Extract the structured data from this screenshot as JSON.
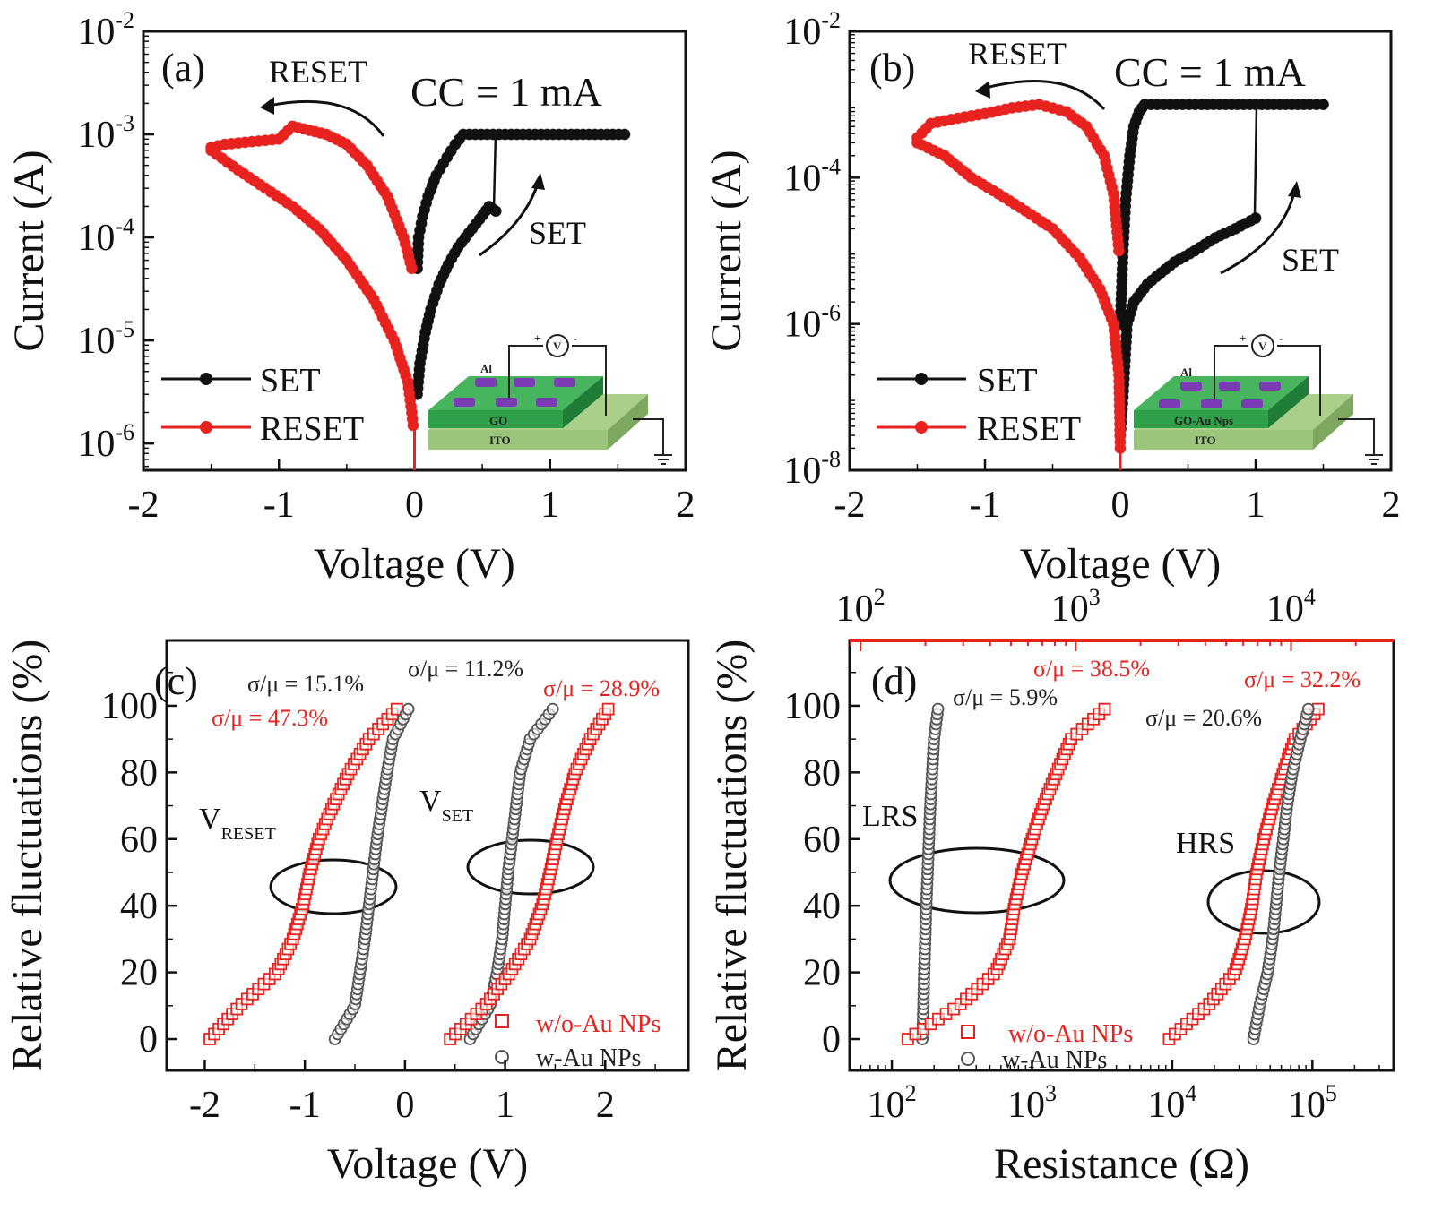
{
  "chart_data": [
    {
      "panel": "(a)",
      "type": "scatter",
      "xlabel": "Voltage (V)",
      "ylabel": "Current (A)",
      "xscale": "linear",
      "yscale": "log",
      "xlim": [
        -2,
        2
      ],
      "ylim": [
        5.5e-07,
        0.01
      ],
      "xticks": [
        -2,
        -1,
        0,
        1,
        2
      ],
      "xtick_labels": [
        "-2",
        "-1",
        "0",
        "1",
        "2"
      ],
      "yticks": [
        1e-06,
        1e-05,
        0.0001,
        0.001,
        0.01
      ],
      "ytick_labels": [
        "10^-6",
        "10^-5",
        "10^-4",
        "10^-3",
        "10^-2"
      ],
      "annotations": {
        "cc": "CC = 1 mA",
        "reset_arrow": "RESET",
        "set_arrow": "SET"
      },
      "inset": {
        "top_electrode": "Al",
        "layer": "GO",
        "bottom_electrode": "ITO",
        "plus": "+",
        "meter": "V",
        "minus": "-"
      },
      "legend": [
        "SET",
        "RESET"
      ],
      "series": [
        {
          "name": "SET",
          "color": "#111111",
          "points": [
            [
              0.02,
              3e-06
            ],
            [
              0.04,
              6e-06
            ],
            [
              0.08,
              1.2e-05
            ],
            [
              0.12,
              2e-05
            ],
            [
              0.18,
              3.5e-05
            ],
            [
              0.25,
              5.5e-05
            ],
            [
              0.32,
              8e-05
            ],
            [
              0.4,
              0.00011
            ],
            [
              0.48,
              0.00015
            ],
            [
              0.55,
              0.0002
            ],
            [
              0.6,
              0.00018
            ]
          ]
        },
        {
          "name": "SET",
          "color": "#111111",
          "points": [
            [
              0.02,
              5e-05
            ],
            [
              0.03,
              0.0001
            ],
            [
              0.06,
              0.00016
            ],
            [
              0.1,
              0.00025
            ],
            [
              0.16,
              0.0004
            ],
            [
              0.24,
              0.0006
            ],
            [
              0.3,
              0.0008
            ],
            [
              0.36,
              0.001
            ],
            [
              0.8,
              0.001
            ],
            [
              1.2,
              0.001
            ],
            [
              1.55,
              0.001
            ]
          ]
        },
        {
          "name": "RESET",
          "color": "#e8231f",
          "points": [
            [
              -0.02,
              5e-05
            ],
            [
              -0.08,
              0.0001
            ],
            [
              -0.2,
              0.00025
            ],
            [
              -0.35,
              0.0005
            ],
            [
              -0.5,
              0.0008
            ],
            [
              -0.65,
              0.001
            ],
            [
              -0.9,
              0.0012
            ],
            [
              -1.0,
              0.0009
            ],
            [
              -1.2,
              0.00085
            ],
            [
              -1.4,
              0.0008
            ],
            [
              -1.5,
              0.00075
            ]
          ]
        },
        {
          "name": "RESET",
          "color": "#e8231f",
          "points": [
            [
              -1.5,
              0.0007
            ],
            [
              -1.3,
              0.00045
            ],
            [
              -1.1,
              0.0003
            ],
            [
              -0.9,
              0.0002
            ],
            [
              -0.7,
              0.00012
            ],
            [
              -0.5,
              6e-05
            ],
            [
              -0.3,
              2.5e-05
            ],
            [
              -0.15,
              1e-05
            ],
            [
              -0.05,
              4e-06
            ],
            [
              -0.02,
              2e-06
            ],
            [
              -0.01,
              1.5e-06
            ]
          ]
        }
      ]
    },
    {
      "panel": "(b)",
      "type": "scatter",
      "xlabel": "Voltage (V)",
      "ylabel": "Current (A)",
      "xscale": "linear",
      "yscale": "log",
      "xlim": [
        -2,
        2
      ],
      "ylim": [
        1e-08,
        0.01
      ],
      "xticks": [
        -2,
        -1,
        0,
        1,
        2
      ],
      "xtick_labels": [
        "-2",
        "-1",
        "0",
        "1",
        "2"
      ],
      "yticks": [
        1e-08,
        1e-06,
        0.0001,
        0.01
      ],
      "ytick_labels": [
        "10^-8",
        "10^-6",
        "10^-4",
        "10^-2"
      ],
      "annotations": {
        "cc": "CC = 1 mA",
        "reset_arrow": "RESET",
        "set_arrow": "SET"
      },
      "inset": {
        "top_electrode": "Al",
        "layer": "GO-Au Nps",
        "bottom_electrode": "ITO",
        "plus": "+",
        "meter": "V",
        "minus": "-"
      },
      "legend": [
        "SET",
        "RESET"
      ],
      "series": [
        {
          "name": "SET",
          "color": "#111111",
          "points": [
            [
              0.0,
              3e-08
            ],
            [
              0.02,
              1e-07
            ],
            [
              0.05,
              1e-06
            ],
            [
              0.1,
              2e-06
            ],
            [
              0.2,
              3.5e-06
            ],
            [
              0.3,
              5e-06
            ],
            [
              0.4,
              7e-06
            ],
            [
              0.55,
              1e-05
            ],
            [
              0.7,
              1.5e-05
            ],
            [
              0.85,
              2e-05
            ],
            [
              1.0,
              2.8e-05
            ]
          ]
        },
        {
          "name": "SET",
          "color": "#111111",
          "points": [
            [
              0.0,
              1e-06
            ],
            [
              0.02,
              1e-05
            ],
            [
              0.04,
              5e-05
            ],
            [
              0.07,
              0.0002
            ],
            [
              0.1,
              0.0005
            ],
            [
              0.14,
              0.0008
            ],
            [
              0.18,
              0.001
            ],
            [
              0.6,
              0.001
            ],
            [
              1.0,
              0.001
            ],
            [
              1.4,
              0.001
            ],
            [
              1.5,
              0.001
            ]
          ]
        },
        {
          "name": "RESET",
          "color": "#e8231f",
          "points": [
            [
              -0.01,
              1e-05
            ],
            [
              -0.05,
              6e-05
            ],
            [
              -0.12,
              0.0002
            ],
            [
              -0.25,
              0.0005
            ],
            [
              -0.4,
              0.0008
            ],
            [
              -0.6,
              0.001
            ],
            [
              -0.8,
              0.0009
            ],
            [
              -1.0,
              0.00075
            ],
            [
              -1.2,
              0.00065
            ],
            [
              -1.4,
              0.00055
            ],
            [
              -1.5,
              0.00035
            ]
          ]
        },
        {
          "name": "RESET",
          "color": "#e8231f",
          "points": [
            [
              -1.5,
              0.0003
            ],
            [
              -1.3,
              0.0002
            ],
            [
              -1.1,
              0.0001
            ],
            [
              -0.9,
              6e-05
            ],
            [
              -0.7,
              3.5e-05
            ],
            [
              -0.5,
              2e-05
            ],
            [
              -0.3,
              8e-06
            ],
            [
              -0.15,
              3e-06
            ],
            [
              -0.05,
              1e-06
            ],
            [
              -0.01,
              2e-07
            ],
            [
              0.0,
              2e-08
            ]
          ]
        }
      ]
    },
    {
      "panel": "(c)",
      "type": "scatter",
      "xlabel": "Voltage (V)",
      "ylabel": "Relative fluctuations (%)",
      "xscale": "linear",
      "yscale": "linear",
      "xlim": [
        -2.38,
        2.83
      ],
      "ylim": [
        -9.4,
        119.6
      ],
      "xticks": [
        -2,
        -1,
        0,
        1,
        2
      ],
      "xtick_labels": [
        "-2",
        "-1",
        "0",
        "1",
        "2"
      ],
      "yticks": [
        0,
        20,
        40,
        60,
        80,
        100
      ],
      "ytick_labels": [
        "0",
        "20",
        "40",
        "60",
        "80",
        "100"
      ],
      "percentiles": [
        0,
        10,
        20,
        30,
        40,
        50,
        60,
        70,
        80,
        90,
        100
      ],
      "annotations": {
        "v_reset_main": "V",
        "v_reset_sub": "RESET",
        "v_set_main": "V",
        "v_set_sub": "SET",
        "cv_reset_w": "σ/μ = 15.1%",
        "cv_reset_wo": "σ/μ = 47.3%",
        "cv_set_w": "σ/μ = 11.2%",
        "cv_set_wo": "σ/μ = 28.9%"
      },
      "legend": [
        "w/o-Au NPs",
        "w-Au NPs"
      ],
      "series": [
        {
          "name": "w/o-Au NPs",
          "group": "RESET",
          "color": "#e8231f",
          "marker": "square",
          "values": [
            -1.95,
            -1.65,
            -1.28,
            -1.12,
            -1.02,
            -0.95,
            -0.86,
            -0.72,
            -0.56,
            -0.36,
            -0.05
          ]
        },
        {
          "name": "w-Au NPs",
          "group": "RESET",
          "color": "#555555",
          "marker": "circle",
          "values": [
            -0.7,
            -0.5,
            -0.45,
            -0.4,
            -0.36,
            -0.32,
            -0.28,
            -0.23,
            -0.18,
            -0.12,
            0.05
          ]
        },
        {
          "name": "w-Au NPs",
          "group": "SET",
          "color": "#555555",
          "marker": "circle",
          "values": [
            0.65,
            0.85,
            0.92,
            0.97,
            1.0,
            1.03,
            1.07,
            1.11,
            1.15,
            1.25,
            1.5
          ]
        },
        {
          "name": "w/o-Au NPs",
          "group": "SET",
          "color": "#e8231f",
          "marker": "square",
          "values": [
            0.45,
            0.8,
            1.05,
            1.25,
            1.37,
            1.45,
            1.52,
            1.6,
            1.7,
            1.85,
            2.05
          ]
        }
      ]
    },
    {
      "panel": "(d)",
      "type": "scatter",
      "xlabel": "Resistance (Ω)",
      "ylabel": "Relative fluctuations (%)",
      "xscale": "log",
      "yscale": "linear",
      "xlim": [
        50,
        380000
      ],
      "ylim": [
        -9.4,
        119.6
      ],
      "xticks": [
        100,
        1000,
        10000,
        100000
      ],
      "xtick_labels": [
        "10^2",
        "10^3",
        "10^4",
        "10^5"
      ],
      "top_axis": {
        "color": "#e8231f",
        "scale": "log",
        "xlim": [
          89,
          30000
        ],
        "ticks": [
          100,
          1000,
          10000
        ],
        "tick_labels": [
          "10^2",
          "10^3",
          "10^4"
        ]
      },
      "yticks": [
        0,
        20,
        40,
        60,
        80,
        100
      ],
      "ytick_labels": [
        "0",
        "20",
        "40",
        "60",
        "80",
        "100"
      ],
      "percentiles": [
        0,
        10,
        20,
        30,
        40,
        50,
        60,
        70,
        80,
        90,
        100
      ],
      "annotations": {
        "lrs": "LRS",
        "hrs": "HRS",
        "cv_lrs_w": "σ/μ = 5.9%",
        "cv_lrs_wo": "σ/μ = 38.5%",
        "cv_hrs_w": "σ/μ = 20.6%",
        "cv_hrs_wo": "σ/μ = 32.2%"
      },
      "legend": [
        "w/o-Au NPs",
        "w-Au NPs"
      ],
      "series": [
        {
          "name": "w-Au NPs",
          "group": "LRS",
          "color": "#555555",
          "marker": "circle",
          "values": [
            165,
            168,
            170,
            173,
            176,
            180,
            184,
            188,
            194,
            200,
            215
          ]
        },
        {
          "name": "w/o-Au NPs",
          "group": "LRS",
          "color": "#e8231f",
          "marker": "square",
          "values": [
            130,
            300,
            550,
            690,
            750,
            850,
            1000,
            1200,
            1500,
            1900,
            3500
          ]
        },
        {
          "name": "w/o-Au NPs",
          "group": "HRS",
          "color": "#e8231f",
          "marker": "square",
          "values": [
            9500,
            18000,
            28000,
            33000,
            37000,
            40000,
            45000,
            52000,
            62000,
            75000,
            115000
          ]
        },
        {
          "name": "w-Au NPs",
          "group": "HRS",
          "color": "#555555",
          "marker": "circle",
          "values": [
            38000,
            42000,
            48000,
            52000,
            55000,
            58000,
            62000,
            66000,
            72000,
            82000,
            95000
          ]
        }
      ]
    }
  ]
}
